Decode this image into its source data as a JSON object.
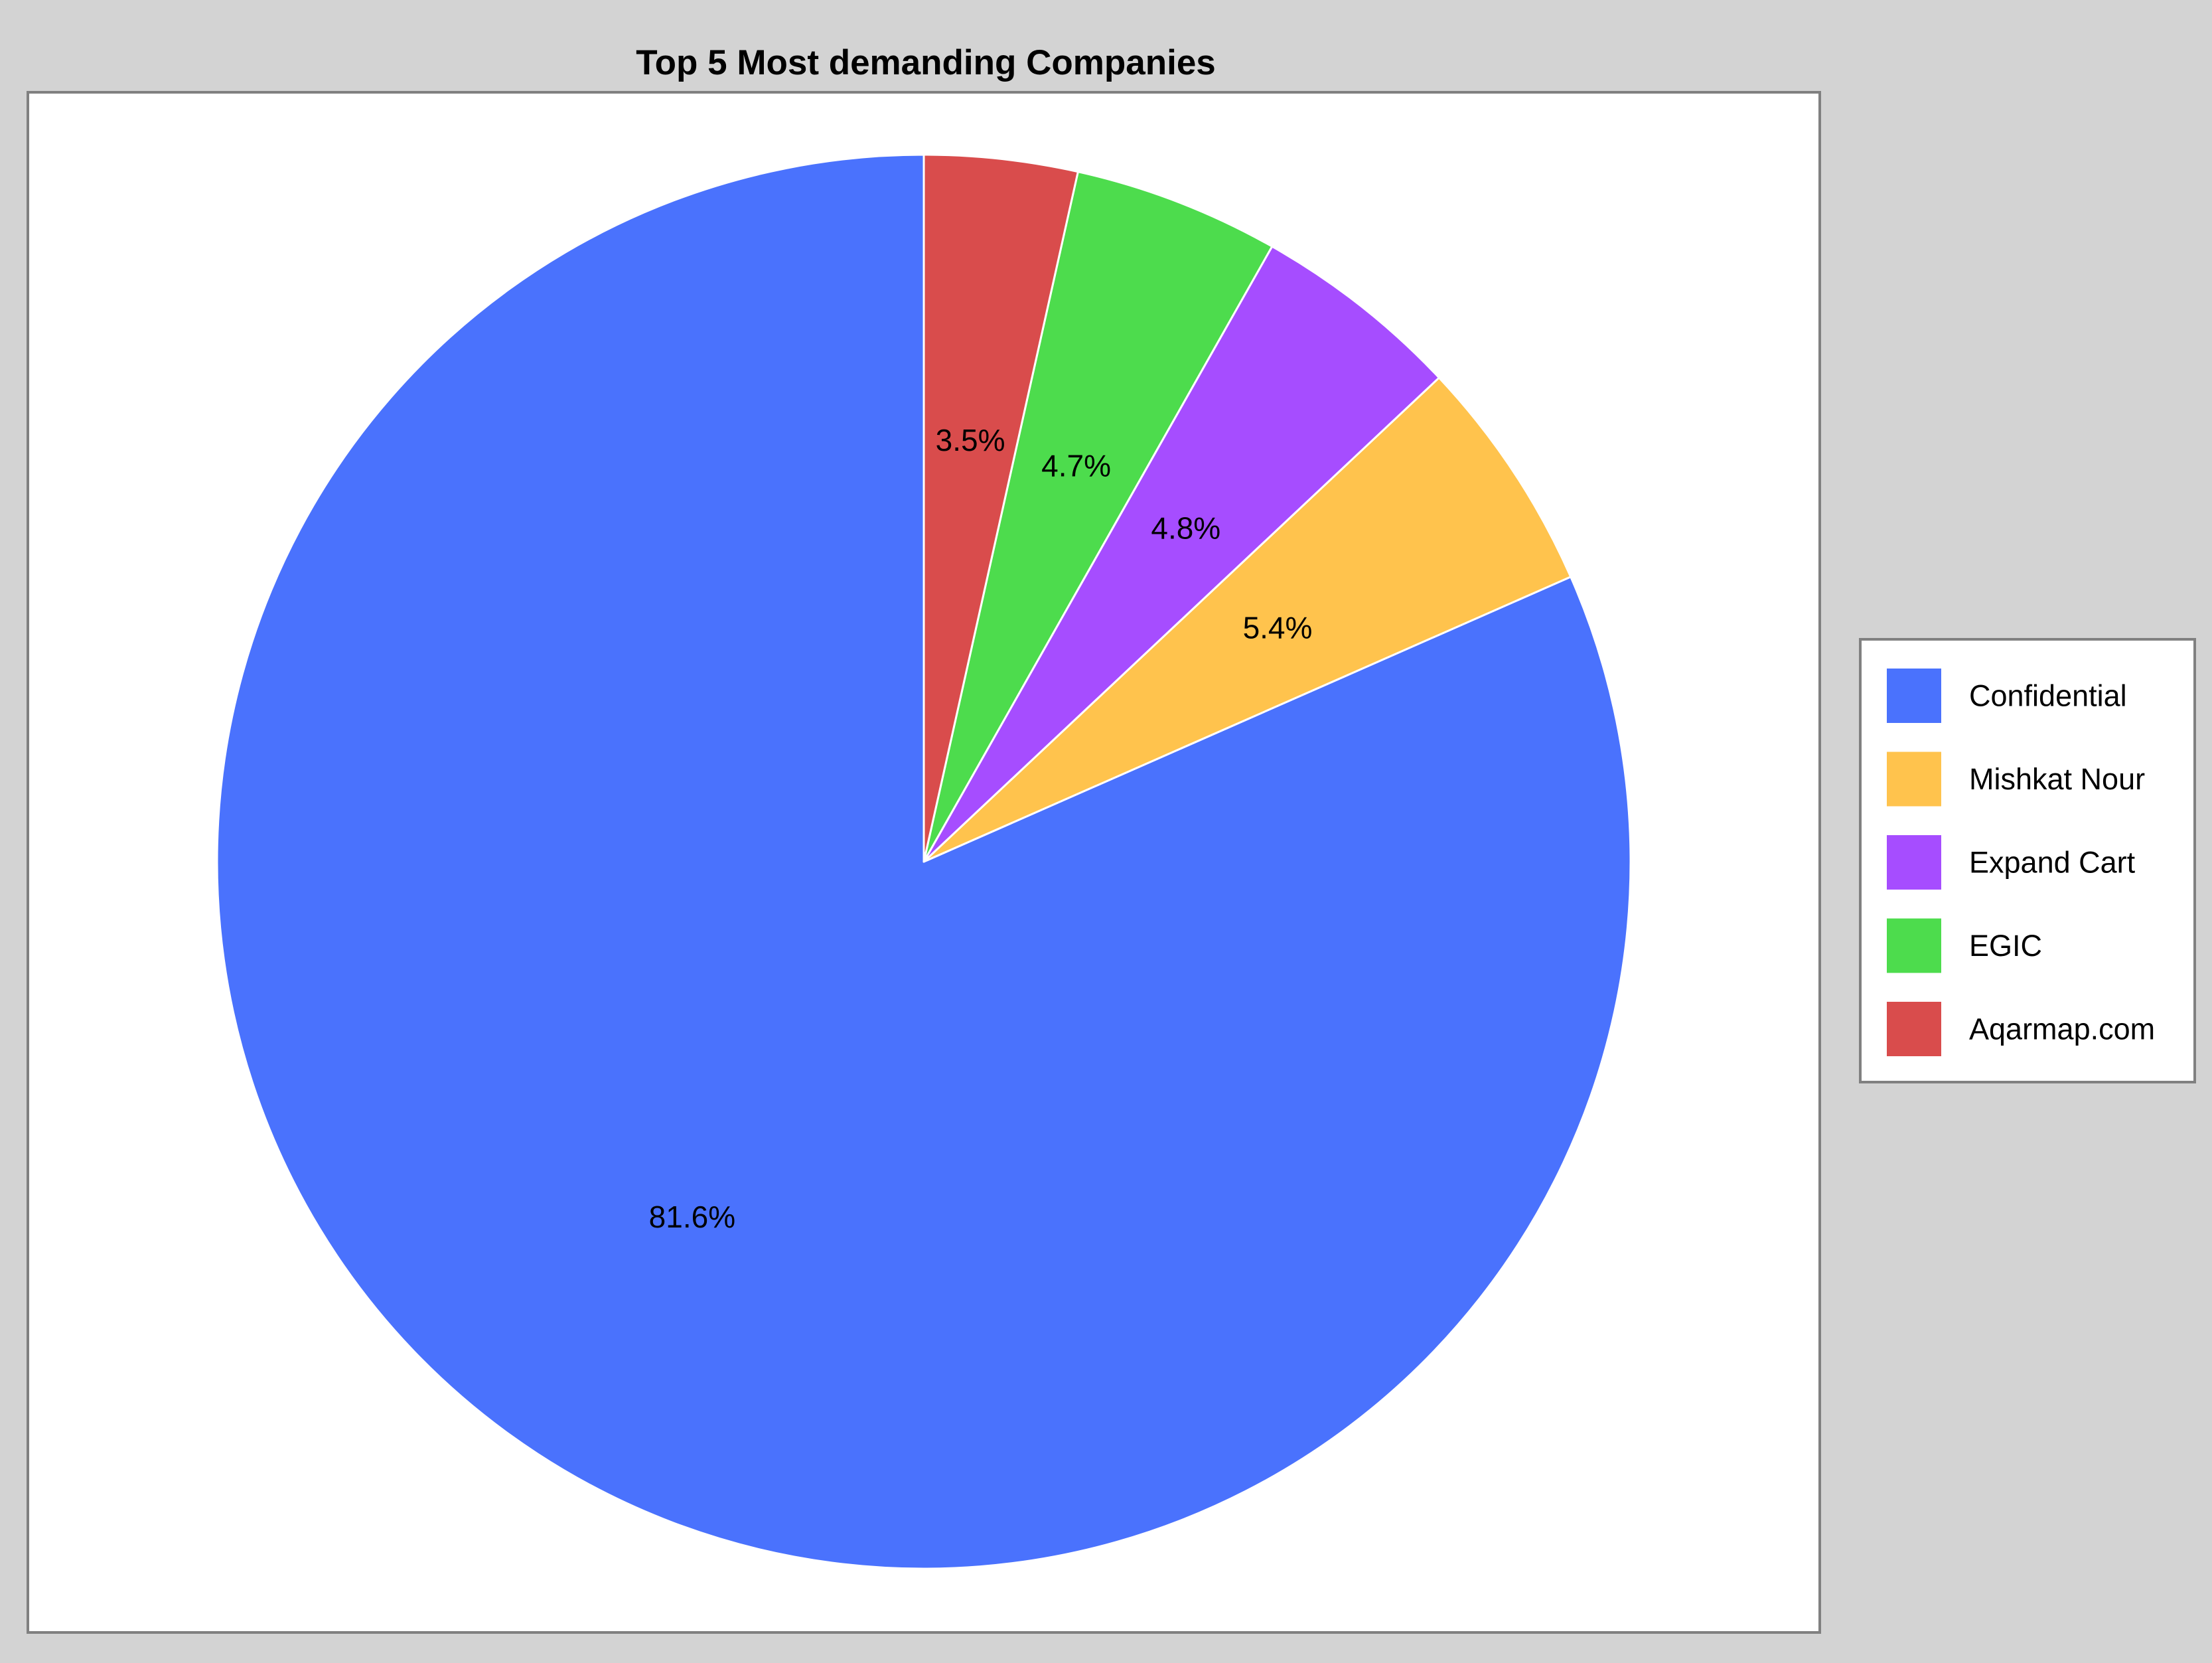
{
  "chart_data": {
    "type": "pie",
    "title": "Top 5 Most demanding Companies",
    "start_angle": "12 o'clock",
    "direction": "counterclockwise",
    "legend_position": "right",
    "slices": [
      {
        "label": "Confidential",
        "value": 81.6,
        "display": "81.6%",
        "color": "#4a72fd"
      },
      {
        "label": "Mishkat Nour",
        "value": 5.4,
        "display": "5.4%",
        "color": "#ffc34d"
      },
      {
        "label": "Expand Cart",
        "value": 4.8,
        "display": "4.8%",
        "color": "#a64dff"
      },
      {
        "label": "EGIC",
        "value": 4.7,
        "display": "4.7%",
        "color": "#4ddc4d"
      },
      {
        "label": "Aqarmap.com",
        "value": 3.5,
        "display": "3.5%",
        "color": "#d94c4c"
      }
    ]
  },
  "colors": {
    "page_background": "#d3d3d3",
    "panel_background": "#ffffff",
    "panel_border": "#808080",
    "slice_edge": "#ffffff",
    "text": "#000000"
  }
}
